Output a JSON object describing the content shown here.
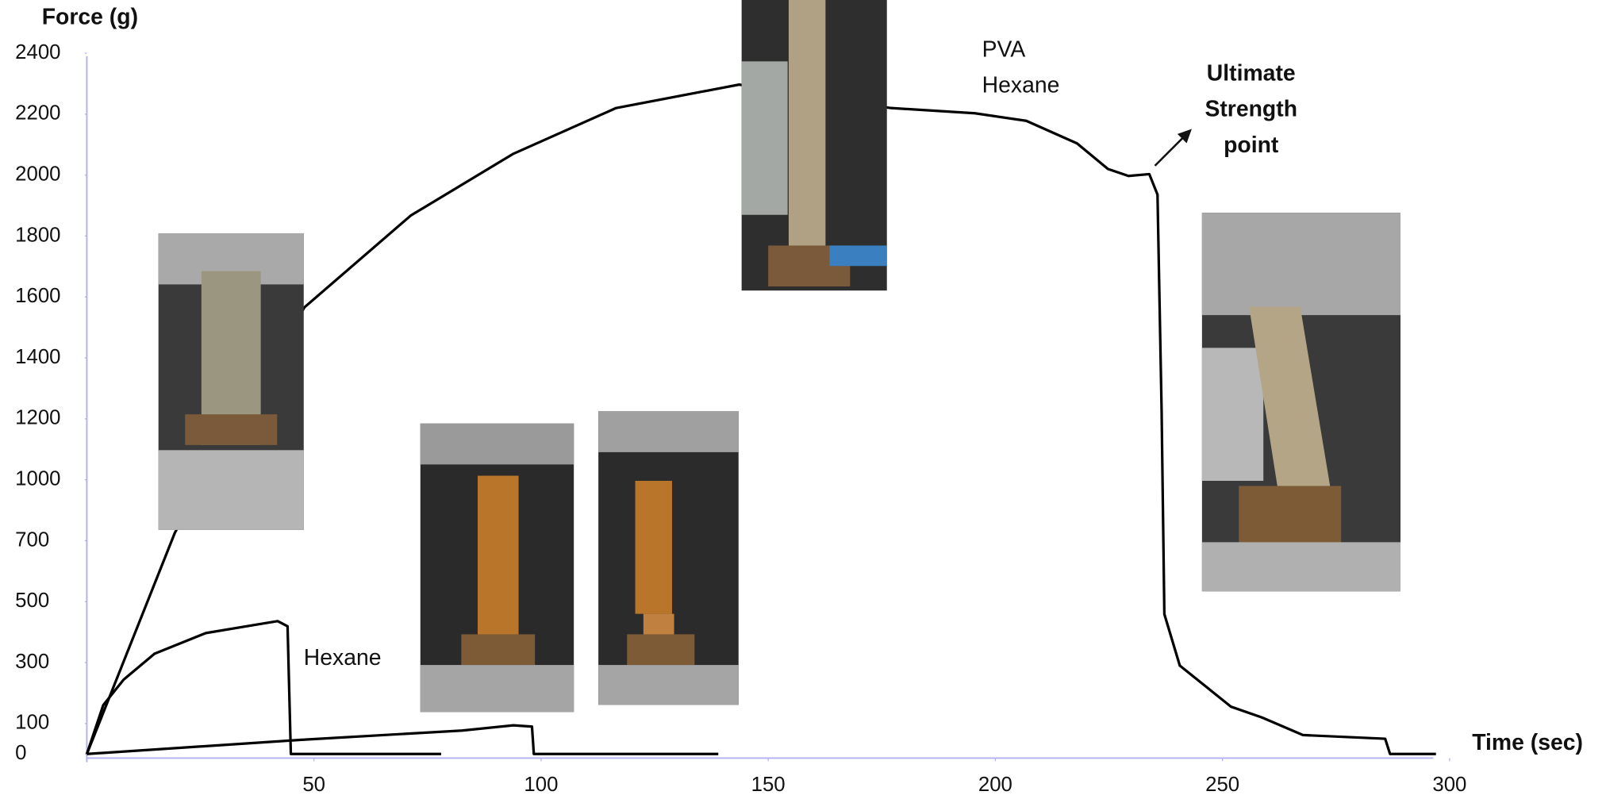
{
  "chart_data": {
    "type": "line",
    "y_label": "Force (g)",
    "x_label": "Time (sec)",
    "xlim": [
      0,
      300
    ],
    "xticks": [
      50,
      100,
      150,
      200,
      250,
      300
    ],
    "ylim": [
      0,
      2400
    ],
    "yticks": [
      0,
      100,
      300,
      500,
      700,
      1000,
      1200,
      1400,
      1600,
      1800,
      2000,
      2200,
      2400
    ],
    "series": [
      {
        "name": "PVA Hexane",
        "color": "#000000",
        "x": [
          0,
          19.4,
          47.9,
          71.3,
          93.9,
          116.5,
          143.6,
          177,
          195.5,
          206.8,
          218,
          224.8,
          229.3,
          233.9,
          235.7,
          236.6,
          237.2,
          240.6,
          251.9,
          258.7,
          267.7,
          285.8,
          286.9,
          297
        ],
        "values": [
          0,
          740,
          1566,
          1867,
          2070,
          2220,
          2297,
          2220,
          2203,
          2178,
          2104,
          2020,
          1997,
          2003,
          1936,
          1230,
          459,
          290,
          155,
          120,
          62,
          50,
          0,
          0
        ]
      },
      {
        "name": "Hexane",
        "color": "#000000",
        "x": [
          0,
          3.6,
          8.1,
          14.9,
          26.2,
          37.5,
          42,
          44.2,
          44.9,
          78
        ],
        "values": [
          0,
          160,
          244,
          329,
          397,
          425,
          436,
          419,
          0,
          0
        ]
      },
      {
        "color": "#000000",
        "x": [
          0,
          48.8,
          82.6,
          93.9,
          98,
          98.4,
          139
        ],
        "values": [
          0,
          48,
          77,
          94,
          90,
          0,
          0
        ]
      }
    ],
    "annotations": [
      {
        "text": [
          "Ultimate",
          "Strength",
          "point"
        ]
      }
    ]
  }
}
